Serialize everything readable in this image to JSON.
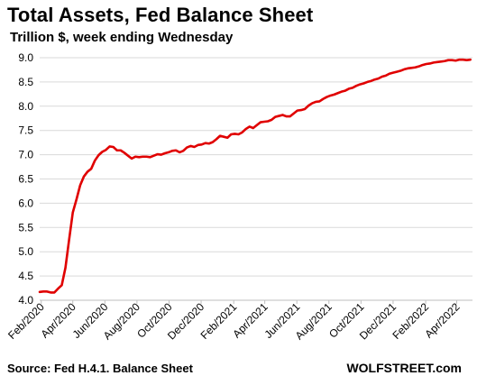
{
  "header": {
    "title": "Total Assets, Fed Balance Sheet",
    "subtitle": "Trillion $, week ending Wednesday"
  },
  "footer": {
    "source": "Source: Fed H.4.1. Balance Sheet",
    "brand": "WOLFSTREET.com"
  },
  "chart_data": {
    "type": "line",
    "title": "Total Assets, Fed Balance Sheet",
    "subtitle": "Trillion $, week ending Wednesday",
    "ylim": [
      4.0,
      9.0
    ],
    "y_ticks": [
      4.0,
      4.5,
      5.0,
      5.5,
      6.0,
      6.5,
      7.0,
      7.5,
      8.0,
      8.5,
      9.0
    ],
    "y_tick_labels": [
      "4.0",
      "4.5",
      "5.0",
      "5.5",
      "6.0",
      "6.5",
      "7.0",
      "7.5",
      "8.0",
      "8.5",
      "9.0"
    ],
    "x_tick_labels": [
      "Feb/2020",
      "Apr/2020",
      "Jun/2020",
      "Aug/2020",
      "Oct/2020",
      "Dec/2020",
      "Feb/2021",
      "Apr/2021",
      "Jun/2021",
      "Aug/2021",
      "Oct/2021",
      "Dec/2021",
      "Feb/2022",
      "Apr/2022"
    ],
    "x_tick_dates": [
      "2020-02-01",
      "2020-04-01",
      "2020-06-01",
      "2020-08-01",
      "2020-10-01",
      "2020-12-01",
      "2021-02-01",
      "2021-04-01",
      "2021-06-01",
      "2021-08-01",
      "2021-10-01",
      "2021-12-01",
      "2022-02-01",
      "2022-04-01"
    ],
    "grid": true,
    "line_color": "#e00000",
    "series": [
      {
        "name": "",
        "x": [
          "2020-01-29",
          "2020-02-05",
          "2020-02-12",
          "2020-02-19",
          "2020-02-26",
          "2020-03-04",
          "2020-03-11",
          "2020-03-18",
          "2020-03-25",
          "2020-04-01",
          "2020-04-08",
          "2020-04-15",
          "2020-04-22",
          "2020-04-29",
          "2020-05-06",
          "2020-05-13",
          "2020-05-20",
          "2020-05-27",
          "2020-06-03",
          "2020-06-10",
          "2020-06-17",
          "2020-06-24",
          "2020-07-01",
          "2020-07-08",
          "2020-07-15",
          "2020-07-22",
          "2020-07-29",
          "2020-08-05",
          "2020-08-12",
          "2020-08-19",
          "2020-08-26",
          "2020-09-02",
          "2020-09-09",
          "2020-09-16",
          "2020-09-23",
          "2020-09-30",
          "2020-10-07",
          "2020-10-14",
          "2020-10-21",
          "2020-10-28",
          "2020-11-04",
          "2020-11-11",
          "2020-11-18",
          "2020-11-25",
          "2020-12-02",
          "2020-12-09",
          "2020-12-16",
          "2020-12-23",
          "2020-12-30",
          "2021-01-06",
          "2021-01-13",
          "2021-01-20",
          "2021-01-27",
          "2021-02-03",
          "2021-02-10",
          "2021-02-17",
          "2021-02-24",
          "2021-03-03",
          "2021-03-10",
          "2021-03-17",
          "2021-03-24",
          "2021-03-31",
          "2021-04-07",
          "2021-04-14",
          "2021-04-21",
          "2021-04-28",
          "2021-05-05",
          "2021-05-12",
          "2021-05-19",
          "2021-05-26",
          "2021-06-02",
          "2021-06-09",
          "2021-06-16",
          "2021-06-23",
          "2021-06-30",
          "2021-07-07",
          "2021-07-14",
          "2021-07-21",
          "2021-07-28",
          "2021-08-04",
          "2021-08-11",
          "2021-08-18",
          "2021-08-25",
          "2021-09-01",
          "2021-09-08",
          "2021-09-15",
          "2021-09-22",
          "2021-09-29",
          "2021-10-06",
          "2021-10-13",
          "2021-10-20",
          "2021-10-27",
          "2021-11-03",
          "2021-11-10",
          "2021-11-17",
          "2021-11-24",
          "2021-12-01",
          "2021-12-08",
          "2021-12-15",
          "2021-12-22",
          "2021-12-29",
          "2022-01-05",
          "2022-01-12",
          "2022-01-19",
          "2022-01-26",
          "2022-02-02",
          "2022-02-09",
          "2022-02-16",
          "2022-02-23",
          "2022-03-02",
          "2022-03-09",
          "2022-03-16",
          "2022-03-23",
          "2022-03-30",
          "2022-04-06",
          "2022-04-13",
          "2022-04-20",
          "2022-04-27"
        ],
        "values": [
          4.17,
          4.18,
          4.18,
          4.16,
          4.16,
          4.24,
          4.31,
          4.67,
          5.25,
          5.81,
          6.08,
          6.37,
          6.55,
          6.65,
          6.71,
          6.88,
          6.99,
          7.06,
          7.1,
          7.17,
          7.16,
          7.09,
          7.09,
          7.04,
          6.98,
          6.92,
          6.96,
          6.95,
          6.96,
          6.96,
          6.95,
          6.98,
          7.01,
          7.0,
          7.03,
          7.05,
          7.08,
          7.09,
          7.05,
          7.08,
          7.15,
          7.18,
          7.16,
          7.2,
          7.21,
          7.24,
          7.23,
          7.26,
          7.32,
          7.39,
          7.37,
          7.35,
          7.42,
          7.43,
          7.42,
          7.46,
          7.53,
          7.58,
          7.55,
          7.61,
          7.67,
          7.68,
          7.69,
          7.72,
          7.78,
          7.8,
          7.82,
          7.79,
          7.79,
          7.85,
          7.91,
          7.92,
          7.94,
          8.01,
          8.06,
          8.09,
          8.1,
          8.15,
          8.19,
          8.22,
          8.24,
          8.27,
          8.3,
          8.32,
          8.36,
          8.38,
          8.42,
          8.45,
          8.47,
          8.5,
          8.52,
          8.55,
          8.57,
          8.61,
          8.63,
          8.67,
          8.69,
          8.71,
          8.73,
          8.76,
          8.78,
          8.79,
          8.8,
          8.82,
          8.85,
          8.87,
          8.88,
          8.9,
          8.91,
          8.92,
          8.93,
          8.95,
          8.95,
          8.94,
          8.96,
          8.96,
          8.95,
          8.96
        ]
      }
    ]
  }
}
